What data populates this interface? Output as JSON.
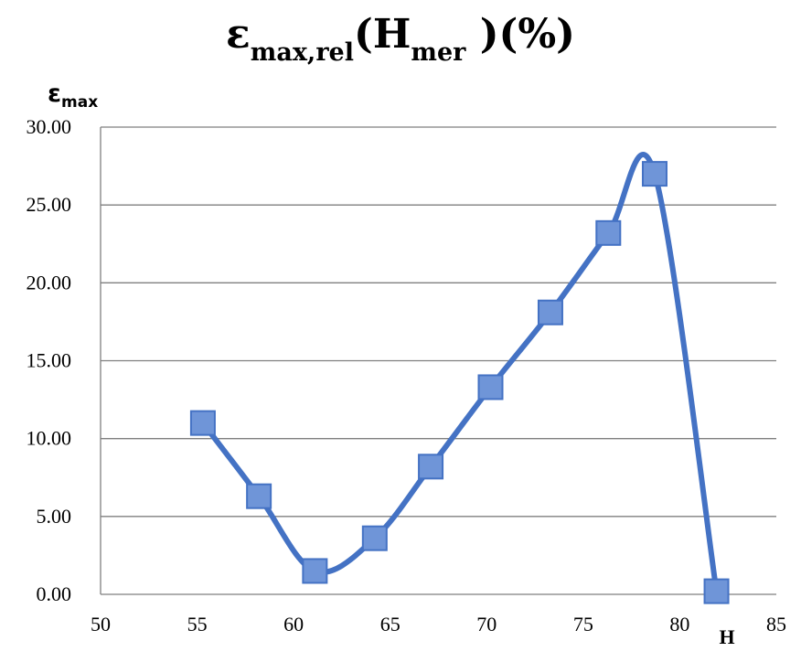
{
  "chart_data": {
    "type": "line",
    "title": {
      "main": "ε",
      "sub1": "max,rel",
      "mid": "(H",
      "sub2": "mer",
      "tail": " )(%)"
    },
    "ylabel": {
      "main": "ε",
      "sub": "max"
    },
    "xlabel": "H",
    "xlim": [
      50,
      85
    ],
    "ylim": [
      0,
      30
    ],
    "x_ticks": [
      50,
      55,
      60,
      65,
      70,
      75,
      80,
      85
    ],
    "y_ticks": [
      "0.00",
      "5.00",
      "10.00",
      "15.00",
      "20.00",
      "25.00",
      "30.00"
    ],
    "y_tick_values": [
      0,
      5,
      10,
      15,
      20,
      25,
      30
    ],
    "grid": "horizontal",
    "smooth": true,
    "series": [
      {
        "color": "#4472C4",
        "marker_fill": "#6F95D8",
        "marker": "square",
        "x": [
          55.3,
          58.2,
          61.1,
          64.2,
          67.1,
          70.2,
          73.3,
          76.3,
          78.7,
          81.9
        ],
        "values": [
          11.0,
          6.3,
          1.5,
          3.6,
          8.2,
          13.3,
          18.1,
          23.2,
          27.0,
          0.2
        ]
      }
    ]
  }
}
